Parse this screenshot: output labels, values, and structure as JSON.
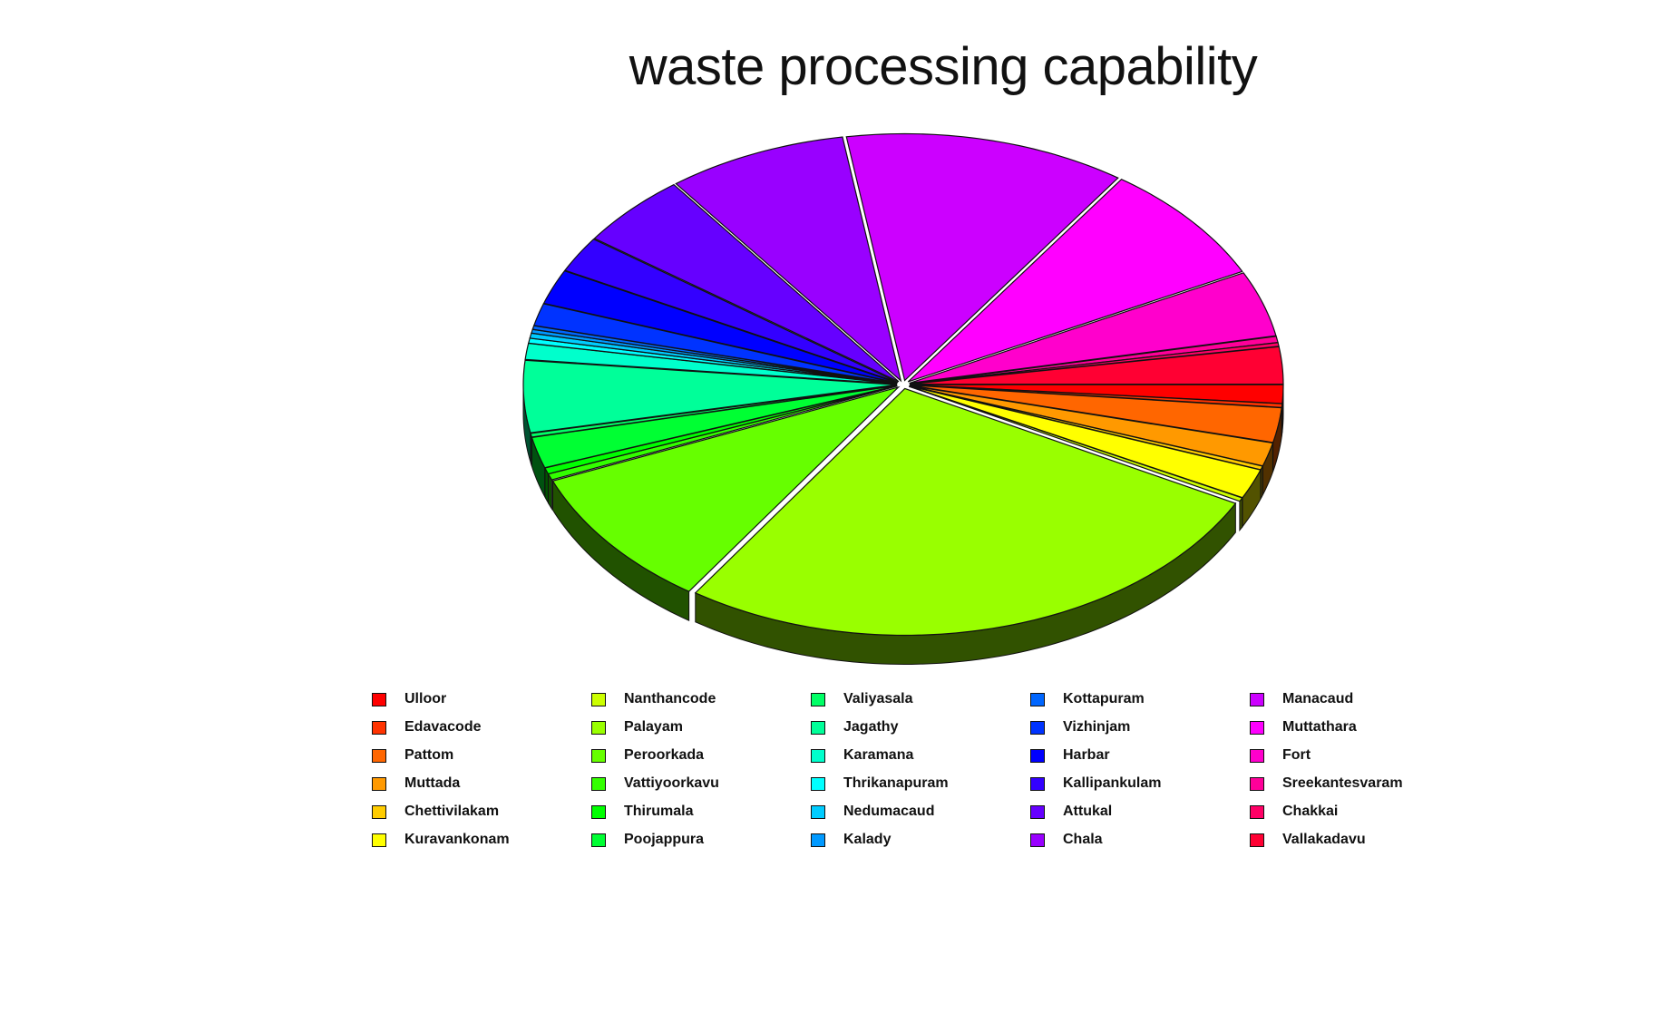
{
  "chart_data": {
    "type": "pie",
    "title": "waste processing capability",
    "legend_position": "bottom",
    "legend_columns": 5,
    "style": "3d-exploded",
    "slices": [
      {
        "label": "Ulloor",
        "value": 1.5,
        "color": "#FF0000"
      },
      {
        "label": "Edavacode",
        "value": 0.3,
        "color": "#FF3300"
      },
      {
        "label": "Pattom",
        "value": 2.8,
        "color": "#FF6600"
      },
      {
        "label": "Muttada",
        "value": 1.9,
        "color": "#FF9900"
      },
      {
        "label": "Chettivilakam",
        "value": 0.3,
        "color": "#FFCC00"
      },
      {
        "label": "Kuravankonam",
        "value": 2.4,
        "color": "#FFFF00"
      },
      {
        "label": "Nanthancode",
        "value": 0.3,
        "color": "#CCFF00"
      },
      {
        "label": "Palayam",
        "value": 33.0,
        "color": "#99FF00"
      },
      {
        "label": "Peroorkada",
        "value": 11.5,
        "color": "#66FF00"
      },
      {
        "label": "Vattiyoorkavu",
        "value": 0.5,
        "color": "#33FF00"
      },
      {
        "label": "Thirumala",
        "value": 0.5,
        "color": "#00FF00"
      },
      {
        "label": "Poojappura",
        "value": 2.5,
        "color": "#00FF33"
      },
      {
        "label": "Valiyasala",
        "value": 0.3,
        "color": "#00FF66"
      },
      {
        "label": "Jagathy",
        "value": 5.8,
        "color": "#00FF99"
      },
      {
        "label": "Karamana",
        "value": 1.3,
        "color": "#00FFCC"
      },
      {
        "label": "Thrikanapuram",
        "value": 0.4,
        "color": "#00FFFF"
      },
      {
        "label": "Nedumacaud",
        "value": 0.4,
        "color": "#00CCFF"
      },
      {
        "label": "Kalady",
        "value": 0.3,
        "color": "#0099FF"
      },
      {
        "label": "Kottapuram",
        "value": 0.3,
        "color": "#0066FF"
      },
      {
        "label": "Vizhinjam",
        "value": 1.8,
        "color": "#0033FF"
      },
      {
        "label": "Harbar",
        "value": 2.8,
        "color": "#0000FF"
      },
      {
        "label": "Kallipankulam",
        "value": 2.9,
        "color": "#3300FF"
      },
      {
        "label": "Attukal",
        "value": 6.0,
        "color": "#6600FF"
      },
      {
        "label": "Chala",
        "value": 9.6,
        "color": "#9900FF"
      },
      {
        "label": "Manacaud",
        "value": 15.0,
        "color": "#CC00FF"
      },
      {
        "label": "Muttathara",
        "value": 9.8,
        "color": "#FF00FF"
      },
      {
        "label": "Fort",
        "value": 5.3,
        "color": "#FF00CC"
      },
      {
        "label": "Sreekantesvaram",
        "value": 0.5,
        "color": "#FF0099"
      },
      {
        "label": "Chakkai",
        "value": 0.3,
        "color": "#FF0066"
      },
      {
        "label": "Vallakadavu",
        "value": 3.0,
        "color": "#FF0033"
      }
    ]
  }
}
